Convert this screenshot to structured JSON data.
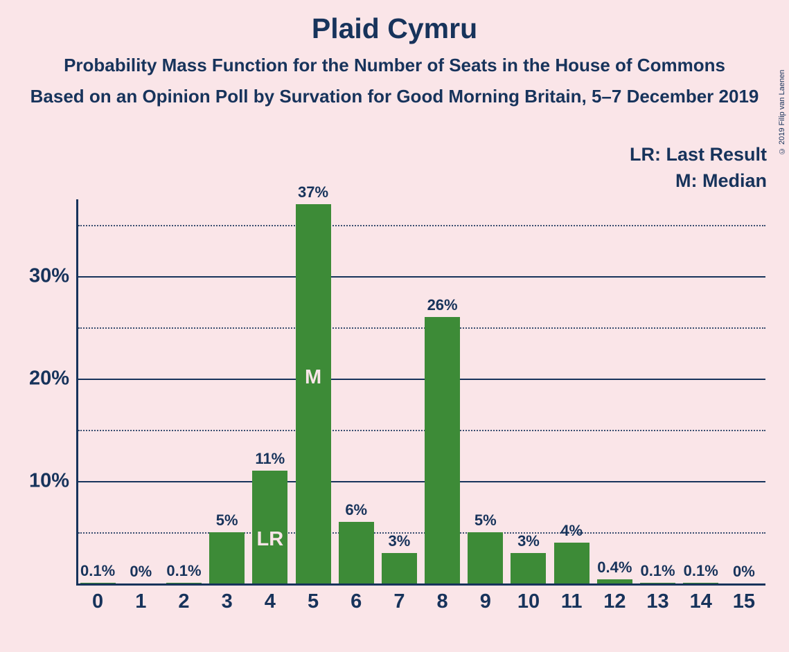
{
  "title": "Plaid Cymru",
  "subtitle1": "Probability Mass Function for the Number of Seats in the House of Commons",
  "subtitle2": "Based on an Opinion Poll by Survation for Good Morning Britain, 5–7 December 2019",
  "legend_lr": "LR: Last Result",
  "legend_m": "M: Median",
  "copyright": "© 2019 Filip van Laenen",
  "chart": {
    "type": "bar",
    "background_color": "#fae5e8",
    "bar_color": "#3d8b37",
    "text_color": "#17335b",
    "bar_inner_text_color": "#fae5e8",
    "title_fontsize": 41,
    "subtitle_fontsize": 26,
    "tick_fontsize": 29,
    "barlabel_fontsize": 22,
    "legend_fontsize": 27,
    "ylim": [
      0,
      37.5
    ],
    "yticks": [
      0,
      10,
      20,
      30
    ],
    "y_minor_step": 5,
    "x_categories": [
      0,
      1,
      2,
      3,
      4,
      5,
      6,
      7,
      8,
      9,
      10,
      11,
      12,
      13,
      14,
      15
    ],
    "values": [
      0.1,
      0,
      0.1,
      5,
      11,
      37,
      6,
      3,
      26,
      5,
      3,
      4,
      0.4,
      0.1,
      0.1,
      0
    ],
    "value_labels": [
      "0.1%",
      "0%",
      "0.1%",
      "5%",
      "11%",
      "37%",
      "6%",
      "3%",
      "26%",
      "5%",
      "3%",
      "4%",
      "0.4%",
      "0.1%",
      "0.1%",
      "0%"
    ],
    "bar_width_ratio": 0.82,
    "annotations": {
      "M": {
        "x": 5,
        "label": "M"
      },
      "LR": {
        "x": 4,
        "label": "LR"
      }
    }
  }
}
